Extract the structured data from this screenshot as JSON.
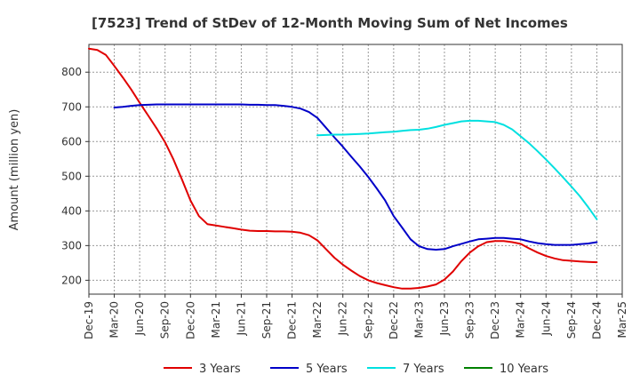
{
  "chart_data": {
    "type": "line",
    "title": "[7523]  Trend of StDev of 12-Month Moving Sum of Net Incomes",
    "ylabel": "Amount (million yen)",
    "xlabel": "",
    "ylim": [
      160,
      880
    ],
    "yticks": [
      200,
      300,
      400,
      500,
      600,
      700,
      800
    ],
    "x_start": "2019-12",
    "x_end": "2025-03",
    "xtick_labels": [
      "Dec-19",
      "Mar-20",
      "Jun-20",
      "Sep-20",
      "Dec-20",
      "Mar-21",
      "Jun-21",
      "Sep-21",
      "Dec-21",
      "Mar-22",
      "Jun-22",
      "Sep-22",
      "Dec-22",
      "Mar-23",
      "Jun-23",
      "Sep-23",
      "Dec-23",
      "Mar-24",
      "Jun-24",
      "Sep-24",
      "Dec-24",
      "Mar-25"
    ],
    "grid": true,
    "legend_position": "bottom",
    "series": [
      {
        "name": "3 Years",
        "color": "#e00000",
        "x": [
          "2019-12",
          "2020-01",
          "2020-02",
          "2020-03",
          "2020-04",
          "2020-05",
          "2020-06",
          "2020-07",
          "2020-08",
          "2020-09",
          "2020-10",
          "2020-11",
          "2020-12",
          "2021-01",
          "2021-02",
          "2021-03",
          "2021-04",
          "2021-05",
          "2021-06",
          "2021-07",
          "2021-08",
          "2021-09",
          "2021-10",
          "2021-11",
          "2021-12",
          "2022-01",
          "2022-02",
          "2022-03",
          "2022-04",
          "2022-05",
          "2022-06",
          "2022-07",
          "2022-08",
          "2022-09",
          "2022-10",
          "2022-11",
          "2022-12",
          "2023-01",
          "2023-02",
          "2023-03",
          "2023-04",
          "2023-05",
          "2023-06",
          "2023-07",
          "2023-08",
          "2023-09",
          "2023-10",
          "2023-11",
          "2023-12",
          "2024-01",
          "2024-02",
          "2024-03",
          "2024-04",
          "2024-05",
          "2024-06",
          "2024-07",
          "2024-08",
          "2024-09",
          "2024-10",
          "2024-11",
          "2024-12"
        ],
        "values": [
          868,
          864,
          850,
          818,
          785,
          750,
          712,
          675,
          638,
          598,
          548,
          490,
          430,
          385,
          362,
          358,
          354,
          350,
          346,
          343,
          342,
          342,
          341,
          341,
          340,
          337,
          330,
          315,
          290,
          265,
          245,
          228,
          212,
          200,
          192,
          186,
          180,
          176,
          176,
          178,
          182,
          188,
          202,
          225,
          255,
          280,
          298,
          310,
          313,
          313,
          310,
          305,
          292,
          280,
          270,
          263,
          258,
          256,
          254,
          253,
          252
        ]
      },
      {
        "name": "5 Years",
        "color": "#0000c8",
        "x": [
          "2020-03",
          "2020-04",
          "2020-05",
          "2020-06",
          "2020-07",
          "2020-08",
          "2020-09",
          "2020-10",
          "2020-11",
          "2020-12",
          "2021-01",
          "2021-02",
          "2021-03",
          "2021-04",
          "2021-05",
          "2021-06",
          "2021-07",
          "2021-08",
          "2021-09",
          "2021-10",
          "2021-11",
          "2021-12",
          "2022-01",
          "2022-02",
          "2022-03",
          "2022-04",
          "2022-05",
          "2022-06",
          "2022-07",
          "2022-08",
          "2022-09",
          "2022-10",
          "2022-11",
          "2022-12",
          "2023-01",
          "2023-02",
          "2023-03",
          "2023-04",
          "2023-05",
          "2023-06",
          "2023-07",
          "2023-08",
          "2023-09",
          "2023-10",
          "2023-11",
          "2023-12",
          "2024-01",
          "2024-02",
          "2024-03",
          "2024-04",
          "2024-05",
          "2024-06",
          "2024-07",
          "2024-08",
          "2024-09",
          "2024-10",
          "2024-11",
          "2024-12"
        ],
        "values": [
          698,
          700,
          703,
          705,
          706,
          707,
          707,
          707,
          707,
          707,
          707,
          707,
          707,
          707,
          707,
          707,
          706,
          706,
          705,
          705,
          703,
          700,
          695,
          685,
          668,
          640,
          612,
          585,
          556,
          528,
          498,
          465,
          430,
          385,
          352,
          318,
          298,
          290,
          288,
          290,
          298,
          305,
          312,
          318,
          320,
          322,
          322,
          320,
          318,
          312,
          307,
          304,
          302,
          302,
          302,
          304,
          306,
          310
        ]
      },
      {
        "name": "7 Years",
        "color": "#00e0e0",
        "x": [
          "2022-03",
          "2022-04",
          "2022-05",
          "2022-06",
          "2022-07",
          "2022-08",
          "2022-09",
          "2022-10",
          "2022-11",
          "2022-12",
          "2023-01",
          "2023-02",
          "2023-03",
          "2023-04",
          "2023-05",
          "2023-06",
          "2023-07",
          "2023-08",
          "2023-09",
          "2023-10",
          "2023-11",
          "2023-12",
          "2024-01",
          "2024-02",
          "2024-03",
          "2024-04",
          "2024-05",
          "2024-06",
          "2024-07",
          "2024-08",
          "2024-09",
          "2024-10",
          "2024-11",
          "2024-12"
        ],
        "values": [
          618,
          619,
          620,
          620,
          621,
          622,
          623,
          625,
          627,
          628,
          631,
          633,
          634,
          637,
          642,
          648,
          653,
          658,
          660,
          660,
          658,
          656,
          648,
          635,
          615,
          595,
          572,
          548,
          523,
          497,
          470,
          442,
          410,
          376
        ]
      },
      {
        "name": "10 Years",
        "color": "#008000",
        "x": [],
        "values": []
      }
    ]
  }
}
